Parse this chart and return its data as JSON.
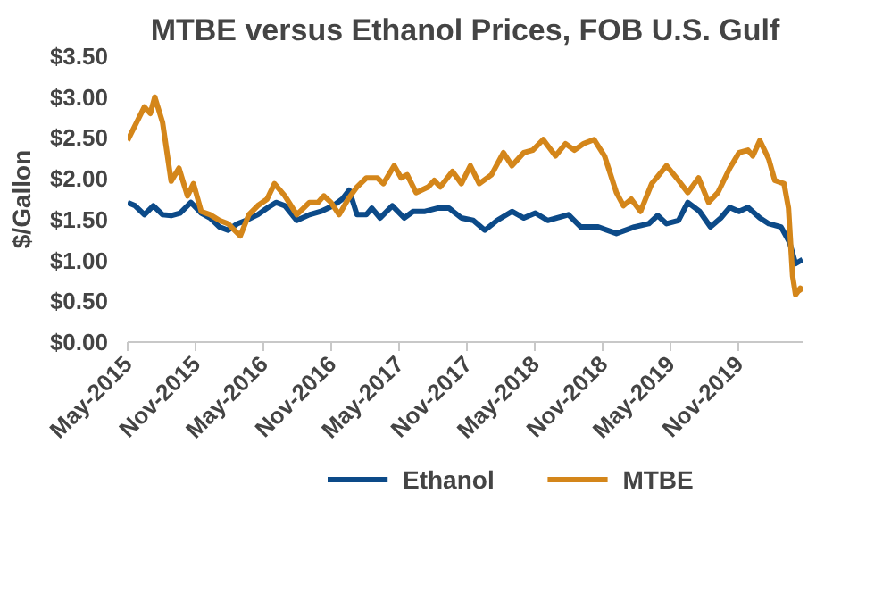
{
  "chart_data": {
    "type": "line",
    "title": "MTBE versus Ethanol Prices, FOB U.S. Gulf",
    "ylabel": "$/Gallon",
    "xlim": [
      "2015-05-01",
      "2020-04-20"
    ],
    "xticks": [
      {
        "value": "2015-05-01",
        "label": "May-2015"
      },
      {
        "value": "2015-11-01",
        "label": "Nov-2015"
      },
      {
        "value": "2016-05-01",
        "label": "May-2016"
      },
      {
        "value": "2016-11-01",
        "label": "Nov-2016"
      },
      {
        "value": "2017-05-01",
        "label": "May-2017"
      },
      {
        "value": "2017-11-01",
        "label": "Nov-2017"
      },
      {
        "value": "2018-05-01",
        "label": "May-2018"
      },
      {
        "value": "2018-11-01",
        "label": "Nov-2018"
      },
      {
        "value": "2019-05-01",
        "label": "May-2019"
      },
      {
        "value": "2019-11-01",
        "label": "Nov-2019"
      }
    ],
    "ylim": [
      0,
      3.5
    ],
    "yticks": [
      {
        "value": 0,
        "label": "$0.00"
      },
      {
        "value": 0.5,
        "label": "$0.50"
      },
      {
        "value": 1,
        "label": "$1.00"
      },
      {
        "value": 1.5,
        "label": "$1.50"
      },
      {
        "value": 2,
        "label": "$2.00"
      },
      {
        "value": 2.5,
        "label": "$2.50"
      },
      {
        "value": 3,
        "label": "$3.00"
      },
      {
        "value": 3.5,
        "label": "$3.50"
      }
    ],
    "grid": false,
    "legend": "bottom",
    "series": [
      {
        "name": "Ethanol",
        "color": "#0c4a88",
        "x": [
          "2015-05-01",
          "2015-05-21",
          "2015-06-15",
          "2015-07-09",
          "2015-08-03",
          "2015-08-26",
          "2015-09-19",
          "2015-10-18",
          "2015-11-15",
          "2015-12-09",
          "2016-01-03",
          "2016-01-26",
          "2016-02-20",
          "2016-03-14",
          "2016-04-15",
          "2016-05-10",
          "2016-06-03",
          "2016-06-27",
          "2016-07-29",
          "2016-09-01",
          "2016-10-02",
          "2016-11-04",
          "2016-11-28",
          "2016-12-17",
          "2017-01-07",
          "2017-02-01",
          "2017-02-16",
          "2017-03-10",
          "2017-04-12",
          "2017-05-14",
          "2017-06-07",
          "2017-07-09",
          "2017-08-11",
          "2017-09-12",
          "2017-10-15",
          "2017-11-16",
          "2017-12-17",
          "2018-01-19",
          "2018-02-28",
          "2018-04-01",
          "2018-05-02",
          "2018-06-04",
          "2018-07-30",
          "2018-09-01",
          "2018-10-18",
          "2018-12-06",
          "2019-01-23",
          "2019-03-03",
          "2019-03-27",
          "2019-04-20",
          "2019-05-22",
          "2019-06-16",
          "2019-07-18",
          "2019-08-16",
          "2019-09-13",
          "2019-10-07",
          "2019-11-01",
          "2019-11-25",
          "2019-12-27",
          "2020-01-20",
          "2020-02-22",
          "2020-03-16",
          "2020-04-01",
          "2020-04-20"
        ],
        "values": [
          1.71,
          1.67,
          1.56,
          1.67,
          1.56,
          1.55,
          1.58,
          1.71,
          1.58,
          1.52,
          1.41,
          1.37,
          1.45,
          1.49,
          1.56,
          1.64,
          1.71,
          1.67,
          1.49,
          1.56,
          1.6,
          1.67,
          1.75,
          1.86,
          1.56,
          1.56,
          1.64,
          1.52,
          1.67,
          1.52,
          1.6,
          1.6,
          1.64,
          1.64,
          1.52,
          1.49,
          1.37,
          1.49,
          1.6,
          1.52,
          1.58,
          1.49,
          1.56,
          1.41,
          1.41,
          1.33,
          1.41,
          1.45,
          1.55,
          1.45,
          1.49,
          1.71,
          1.6,
          1.41,
          1.52,
          1.65,
          1.6,
          1.65,
          1.52,
          1.45,
          1.41,
          1.22,
          0.96,
          1.01
        ]
      },
      {
        "name": "MTBE",
        "color": "#d4861a",
        "x": [
          "2015-05-01",
          "2015-06-15",
          "2015-07-01",
          "2015-07-13",
          "2015-08-03",
          "2015-08-26",
          "2015-09-16",
          "2015-10-09",
          "2015-10-25",
          "2015-11-15",
          "2015-12-09",
          "2016-01-03",
          "2016-01-26",
          "2016-02-28",
          "2016-03-22",
          "2016-04-15",
          "2016-05-10",
          "2016-05-30",
          "2016-06-27",
          "2016-07-29",
          "2016-09-01",
          "2016-09-24",
          "2016-10-10",
          "2016-10-29",
          "2016-11-20",
          "2016-12-14",
          "2017-01-07",
          "2017-02-01",
          "2017-03-03",
          "2017-03-19",
          "2017-04-17",
          "2017-05-06",
          "2017-05-22",
          "2017-06-15",
          "2017-07-18",
          "2017-08-03",
          "2017-08-19",
          "2017-09-21",
          "2017-10-15",
          "2017-11-08",
          "2017-12-02",
          "2018-01-04",
          "2018-02-05",
          "2018-02-28",
          "2018-04-01",
          "2018-04-25",
          "2018-05-23",
          "2018-06-25",
          "2018-07-22",
          "2018-08-15",
          "2018-09-09",
          "2018-10-07",
          "2018-11-04",
          "2018-12-06",
          "2018-12-25",
          "2019-01-15",
          "2019-02-09",
          "2019-03-11",
          "2019-04-20",
          "2019-05-22",
          "2019-06-16",
          "2019-07-15",
          "2019-08-11",
          "2019-09-05",
          "2019-10-07",
          "2019-11-01",
          "2019-11-25",
          "2019-12-08",
          "2019-12-27",
          "2020-01-20",
          "2020-02-05",
          "2020-03-01",
          "2020-03-13",
          "2020-03-24",
          "2020-04-01",
          "2020-04-14",
          "2020-04-20"
        ],
        "values": [
          2.47,
          2.88,
          2.8,
          3.0,
          2.69,
          1.97,
          2.13,
          1.79,
          1.94,
          1.6,
          1.56,
          1.49,
          1.45,
          1.3,
          1.56,
          1.67,
          1.75,
          1.94,
          1.79,
          1.56,
          1.71,
          1.71,
          1.79,
          1.71,
          1.56,
          1.75,
          1.9,
          2.01,
          2.01,
          1.94,
          2.16,
          2.01,
          2.05,
          1.83,
          1.9,
          1.98,
          1.9,
          2.09,
          1.94,
          2.16,
          1.94,
          2.05,
          2.32,
          2.16,
          2.32,
          2.35,
          2.48,
          2.28,
          2.43,
          2.35,
          2.43,
          2.48,
          2.28,
          1.83,
          1.67,
          1.75,
          1.6,
          1.94,
          2.16,
          1.98,
          1.83,
          2.01,
          1.71,
          1.83,
          2.13,
          2.32,
          2.35,
          2.28,
          2.47,
          2.24,
          1.98,
          1.94,
          1.64,
          0.81,
          0.58,
          0.66,
          0.62
        ]
      }
    ]
  }
}
